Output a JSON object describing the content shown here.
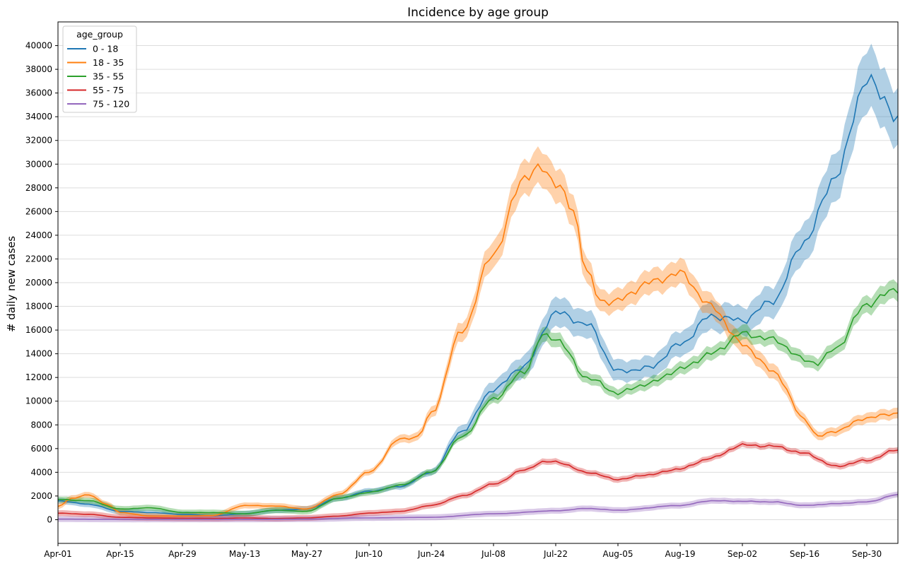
{
  "chart_data": {
    "type": "line",
    "title": "Incidence by age group",
    "xlabel": "",
    "ylabel": "# daily new cases",
    "ylim": [
      -2000,
      42000
    ],
    "yticks": [
      0,
      2000,
      4000,
      6000,
      8000,
      10000,
      12000,
      14000,
      16000,
      18000,
      20000,
      22000,
      24000,
      26000,
      28000,
      30000,
      32000,
      34000,
      36000,
      38000,
      40000
    ],
    "x_range": [
      "2021-04-01",
      "2021-10-07"
    ],
    "x_ticks": [
      {
        "date": "2021-04-01",
        "label": "Apr-01"
      },
      {
        "date": "2021-04-15",
        "label": "Apr-15"
      },
      {
        "date": "2021-04-29",
        "label": "Apr-29"
      },
      {
        "date": "2021-05-13",
        "label": "May-13"
      },
      {
        "date": "2021-05-27",
        "label": "May-27"
      },
      {
        "date": "2021-06-10",
        "label": "Jun-10"
      },
      {
        "date": "2021-06-24",
        "label": "Jun-24"
      },
      {
        "date": "2021-07-08",
        "label": "Jul-08"
      },
      {
        "date": "2021-07-22",
        "label": "Jul-22"
      },
      {
        "date": "2021-08-05",
        "label": "Aug-05"
      },
      {
        "date": "2021-08-19",
        "label": "Aug-19"
      },
      {
        "date": "2021-09-02",
        "label": "Sep-02"
      },
      {
        "date": "2021-09-16",
        "label": "Sep-16"
      },
      {
        "date": "2021-09-30",
        "label": "Sep-30"
      }
    ],
    "grid": "horizontal",
    "legend_title": "age_group",
    "legend_position": "top-left",
    "series": [
      {
        "name": "0 - 18",
        "color": "#1f77b4",
        "band": 0.07,
        "x": [
          "2021-04-01",
          "2021-04-08",
          "2021-04-15",
          "2021-04-22",
          "2021-04-29",
          "2021-05-06",
          "2021-05-13",
          "2021-05-20",
          "2021-05-27",
          "2021-06-03",
          "2021-06-10",
          "2021-06-17",
          "2021-06-24",
          "2021-07-01",
          "2021-07-08",
          "2021-07-15",
          "2021-07-22",
          "2021-07-29",
          "2021-08-05",
          "2021-08-12",
          "2021-08-19",
          "2021-08-26",
          "2021-09-02",
          "2021-09-09",
          "2021-09-16",
          "2021-09-23",
          "2021-09-30",
          "2021-10-04",
          "2021-10-07"
        ],
        "values": [
          1600,
          1300,
          700,
          600,
          450,
          350,
          500,
          800,
          900,
          1800,
          2400,
          2800,
          4000,
          7500,
          11000,
          13000,
          17500,
          16500,
          12500,
          12800,
          14800,
          17200,
          16800,
          18500,
          23500,
          29000,
          37200,
          35500,
          33600
        ]
      },
      {
        "name": "18 - 35",
        "color": "#ff7f0e",
        "band": 0.05,
        "x": [
          "2021-04-01",
          "2021-04-04",
          "2021-04-08",
          "2021-04-12",
          "2021-04-15",
          "2021-04-22",
          "2021-04-29",
          "2021-05-06",
          "2021-05-13",
          "2021-05-20",
          "2021-05-27",
          "2021-06-03",
          "2021-06-10",
          "2021-06-17",
          "2021-06-21",
          "2021-06-24",
          "2021-07-01",
          "2021-07-08",
          "2021-07-15",
          "2021-07-19",
          "2021-07-22",
          "2021-07-26",
          "2021-07-29",
          "2021-08-01",
          "2021-08-05",
          "2021-08-12",
          "2021-08-19",
          "2021-08-26",
          "2021-09-02",
          "2021-09-09",
          "2021-09-16",
          "2021-09-19",
          "2021-09-23",
          "2021-09-30",
          "2021-10-07"
        ],
        "values": [
          1100,
          1800,
          2100,
          1300,
          600,
          300,
          300,
          350,
          1200,
          1150,
          900,
          2100,
          4000,
          6800,
          7000,
          9000,
          16000,
          22500,
          29000,
          29600,
          28500,
          26000,
          21000,
          18400,
          18500,
          20000,
          20800,
          18000,
          14800,
          12500,
          8500,
          7000,
          7500,
          8600,
          9000
        ]
      },
      {
        "name": "35 - 55",
        "color": "#2ca02c",
        "band": 0.04,
        "x": [
          "2021-04-01",
          "2021-04-08",
          "2021-04-15",
          "2021-04-22",
          "2021-04-29",
          "2021-05-06",
          "2021-05-13",
          "2021-05-20",
          "2021-05-27",
          "2021-06-03",
          "2021-06-10",
          "2021-06-17",
          "2021-06-24",
          "2021-07-01",
          "2021-07-08",
          "2021-07-15",
          "2021-07-19",
          "2021-07-22",
          "2021-07-29",
          "2021-08-05",
          "2021-08-12",
          "2021-08-19",
          "2021-08-26",
          "2021-09-02",
          "2021-09-09",
          "2021-09-16",
          "2021-09-19",
          "2021-09-23",
          "2021-09-30",
          "2021-10-07"
        ],
        "values": [
          1700,
          1600,
          900,
          1000,
          600,
          600,
          500,
          800,
          700,
          1800,
          2300,
          2900,
          4000,
          7000,
          10200,
          12500,
          15500,
          15300,
          12000,
          10700,
          11500,
          12700,
          14000,
          15700,
          15200,
          13500,
          13200,
          14500,
          18200,
          19500
        ]
      },
      {
        "name": "55 - 75",
        "color": "#d62728",
        "band": 0.04,
        "x": [
          "2021-04-01",
          "2021-04-08",
          "2021-04-15",
          "2021-04-22",
          "2021-04-29",
          "2021-05-06",
          "2021-05-13",
          "2021-05-20",
          "2021-05-27",
          "2021-06-03",
          "2021-06-10",
          "2021-06-17",
          "2021-06-24",
          "2021-07-01",
          "2021-07-08",
          "2021-07-15",
          "2021-07-19",
          "2021-07-22",
          "2021-07-29",
          "2021-08-05",
          "2021-08-12",
          "2021-08-19",
          "2021-08-26",
          "2021-09-02",
          "2021-09-09",
          "2021-09-16",
          "2021-09-23",
          "2021-09-30",
          "2021-10-07"
        ],
        "values": [
          550,
          450,
          200,
          150,
          120,
          100,
          150,
          100,
          150,
          300,
          550,
          700,
          1200,
          2000,
          3000,
          4200,
          4850,
          4900,
          4000,
          3400,
          3800,
          4300,
          5200,
          6300,
          6200,
          5600,
          4500,
          5000,
          5900
        ]
      },
      {
        "name": "75 - 120",
        "color": "#9467bd",
        "band": 0.05,
        "x": [
          "2021-04-01",
          "2021-04-15",
          "2021-04-29",
          "2021-05-13",
          "2021-05-27",
          "2021-06-10",
          "2021-06-24",
          "2021-07-08",
          "2021-07-22",
          "2021-07-29",
          "2021-08-05",
          "2021-08-19",
          "2021-08-26",
          "2021-09-02",
          "2021-09-09",
          "2021-09-16",
          "2021-09-23",
          "2021-09-30",
          "2021-10-07"
        ],
        "values": [
          50,
          30,
          30,
          30,
          50,
          150,
          200,
          500,
          750,
          950,
          800,
          1200,
          1600,
          1550,
          1500,
          1200,
          1350,
          1500,
          2100
        ]
      }
    ]
  }
}
